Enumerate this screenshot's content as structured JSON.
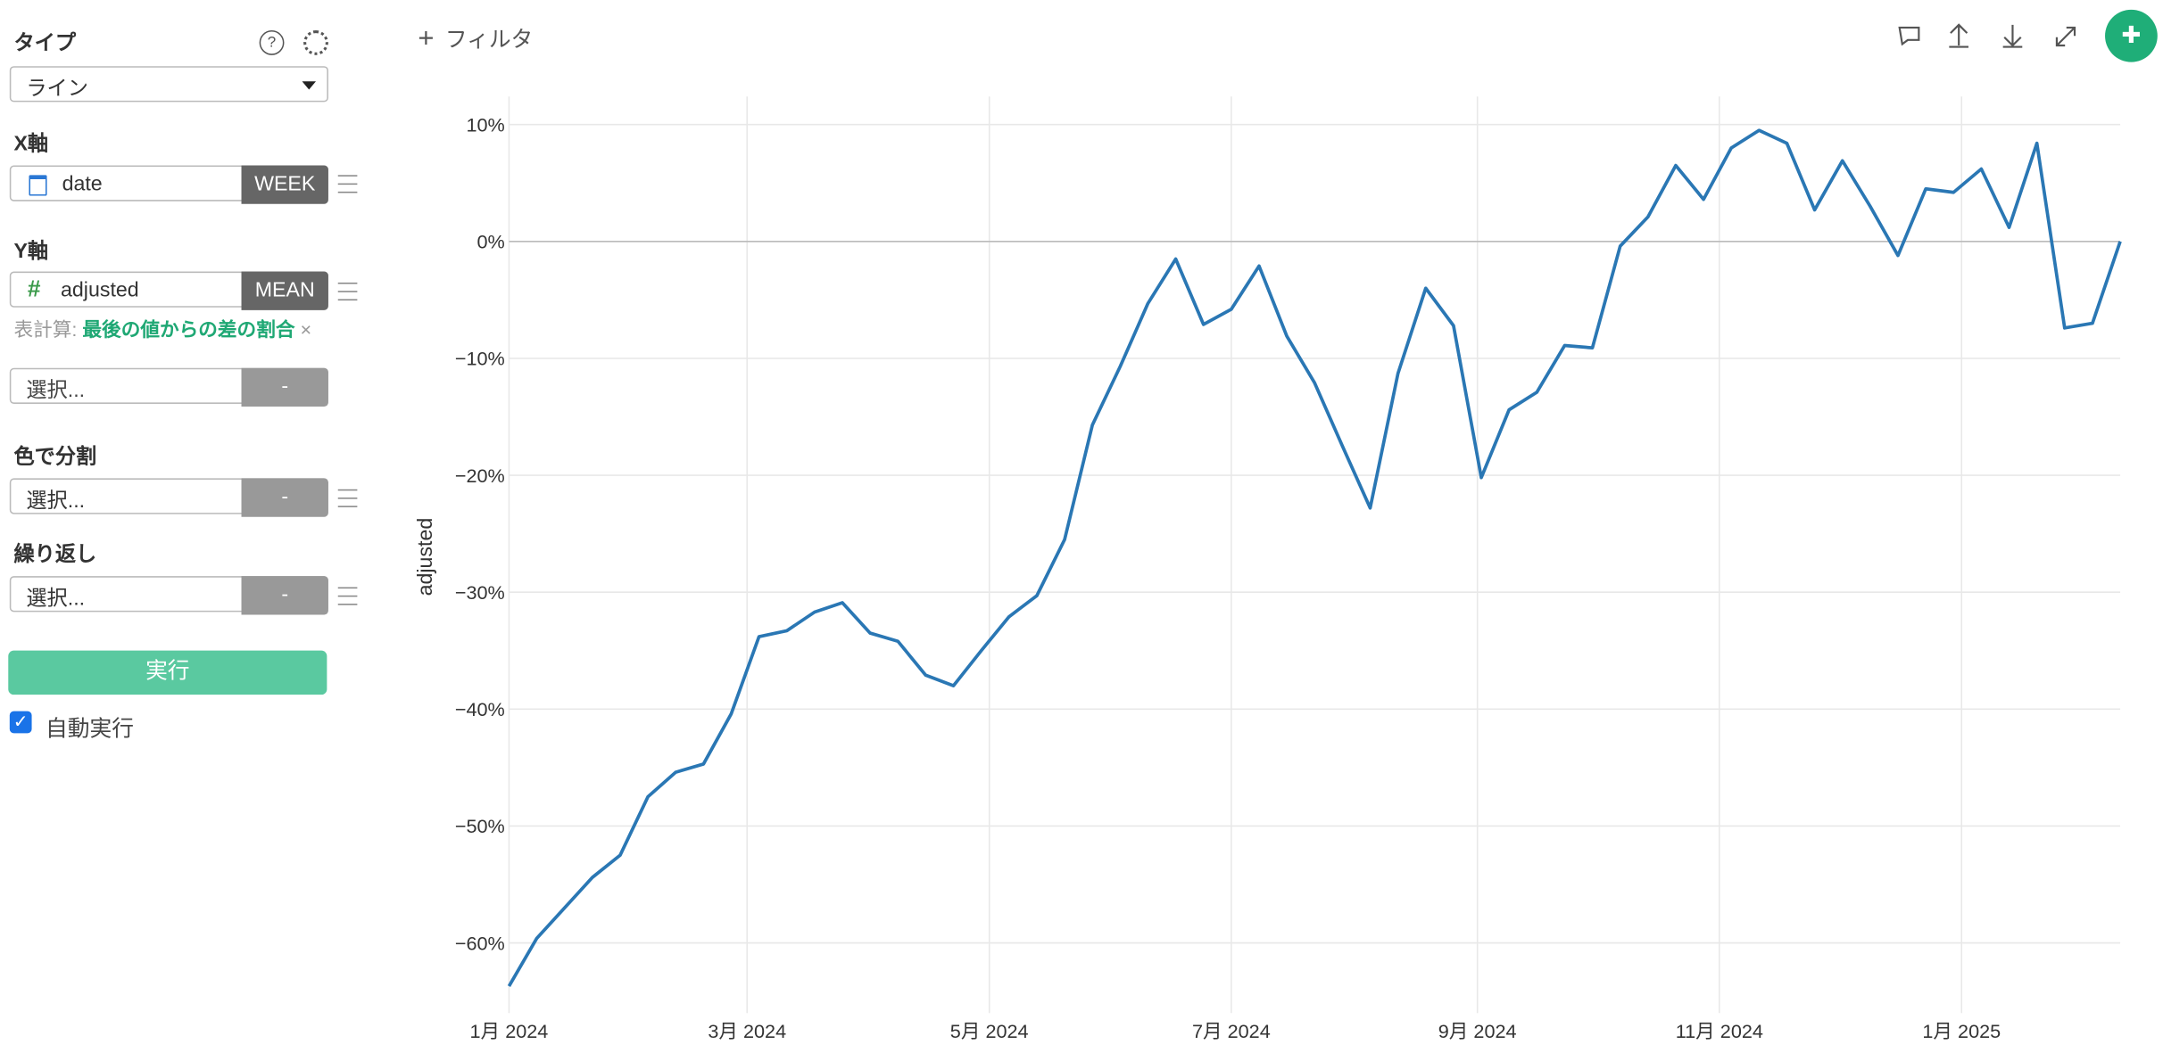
{
  "sidebar": {
    "type_label": "タイプ",
    "type_value": "ライン",
    "x_label": "X軸",
    "x_field": "date",
    "x_agg": "WEEK",
    "y_label": "Y軸",
    "y_field": "adjusted",
    "y_agg": "MEAN",
    "calc_label": "表計算:",
    "calc_value": "最後の値からの差の割合",
    "select_placeholder": "選択...",
    "select_agg": "-",
    "color_label": "色で分割",
    "color_placeholder": "選択...",
    "color_agg": "-",
    "repeat_label": "繰り返し",
    "repeat_placeholder": "選択...",
    "repeat_agg": "-",
    "run_button": "実行",
    "auto_run": "自動実行"
  },
  "toolbar": {
    "filter": "フィルタ"
  },
  "chart_data": {
    "type": "line",
    "y_label": "adjusted",
    "x": [
      0,
      1,
      2,
      3,
      4,
      5,
      6,
      7,
      8,
      9,
      10,
      11,
      12,
      13,
      14,
      15,
      16,
      17,
      18,
      19,
      20,
      21,
      22,
      23,
      24,
      25,
      26,
      27,
      28,
      29,
      30,
      31,
      32,
      33,
      34,
      35,
      36,
      37,
      38,
      39,
      40,
      41,
      42,
      43,
      44,
      45,
      46,
      47,
      48,
      49,
      50,
      51,
      52,
      53,
      54,
      55,
      56,
      57,
      58
    ],
    "series": [
      {
        "name": "adjusted",
        "color": "#2a77b4",
        "values": [
          -63.7,
          -59.6,
          -57,
          -54.4,
          -52.5,
          -47.5,
          -45.4,
          -44.7,
          -40.4,
          -33.8,
          -33.3,
          -31.7,
          -30.9,
          -33.5,
          -34.2,
          -37.1,
          -38,
          -35,
          -32.1,
          -30.3,
          -25.5,
          -15.7,
          -10.7,
          -5.3,
          -1.5,
          -7.1,
          -5.8,
          -2.1,
          -8.1,
          -12.1,
          -17.5,
          -22.8,
          -11.3,
          -4,
          -7.2,
          -20.2,
          -14.4,
          -12.9,
          -8.9,
          -9.1,
          -0.4,
          2.1,
          6.5,
          3.6,
          8,
          9.5,
          8.4,
          2.7,
          6.9,
          3,
          -1.2,
          4.5,
          4.2,
          6.2,
          1.2,
          8.4,
          -7.4,
          -7,
          0
        ]
      }
    ],
    "xlim": [
      0,
      58
    ],
    "xticks": [
      {
        "value": 0,
        "label": "1月 2024"
      },
      {
        "value": 8.57,
        "label": "3月 2024"
      },
      {
        "value": 17.29,
        "label": "5月 2024"
      },
      {
        "value": 26,
        "label": "7月 2024"
      },
      {
        "value": 34.86,
        "label": "9月 2024"
      },
      {
        "value": 43.57,
        "label": "11月 2024"
      },
      {
        "value": 52.29,
        "label": "1月 2025"
      }
    ],
    "ylim": [
      -66,
      12.4
    ],
    "yticks": [
      {
        "value": -60,
        "label": "−60%"
      },
      {
        "value": -50,
        "label": "−50%"
      },
      {
        "value": -40,
        "label": "−40%"
      },
      {
        "value": -30,
        "label": "−30%"
      },
      {
        "value": -20,
        "label": "−20%"
      },
      {
        "value": -10,
        "label": "−10%"
      },
      {
        "value": 0,
        "label": "0%"
      },
      {
        "value": 10,
        "label": "10%"
      }
    ],
    "grid": true
  }
}
